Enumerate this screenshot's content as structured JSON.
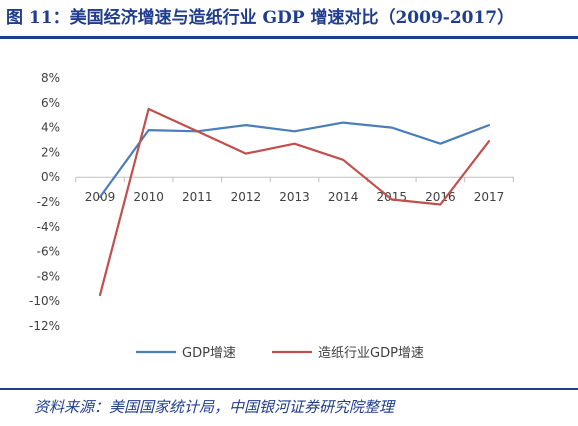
{
  "header": {
    "title": "图 11：美国经济增速与造纸行业 GDP 增速对比（2009-2017）"
  },
  "footer": {
    "source": "资料来源：美国国家统计局，中国银河证券研究院整理"
  },
  "chart_data": {
    "type": "line",
    "categories": [
      "2009",
      "2010",
      "2011",
      "2012",
      "2013",
      "2014",
      "2015",
      "2016",
      "2017"
    ],
    "series": [
      {
        "name": "GDP增速",
        "color": "#4a7ebb",
        "values": [
          -1.6,
          3.8,
          3.7,
          4.2,
          3.7,
          4.4,
          4.0,
          2.7,
          4.2
        ]
      },
      {
        "name": "造纸行业GDP增速",
        "color": "#c0504d",
        "values": [
          -9.5,
          5.5,
          3.7,
          1.9,
          2.7,
          1.4,
          -1.8,
          -2.2,
          2.9
        ]
      }
    ],
    "ylim": [
      -12,
      8
    ],
    "yticks": [
      8,
      6,
      4,
      2,
      0,
      -2,
      -4,
      -6,
      -8,
      -10,
      -12
    ],
    "ytick_labels": [
      "8%",
      "6%",
      "4%",
      "2%",
      "0%",
      "-2%",
      "-4%",
      "-6%",
      "-8%",
      "-10%",
      "-12%"
    ],
    "legend": "bottom",
    "grid": false
  }
}
